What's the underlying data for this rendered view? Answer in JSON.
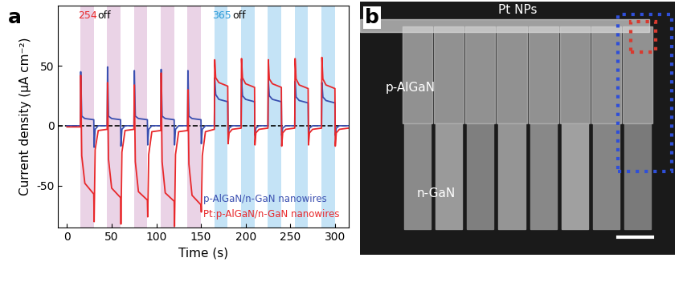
{
  "chart_data": {
    "type": "line",
    "panel_label": "a",
    "x_label": "Time (s)",
    "y_label": "Current density (μA cm⁻²)",
    "xlim": [
      -10,
      315
    ],
    "xticks": [
      0,
      50,
      100,
      150,
      200,
      250,
      300
    ],
    "ylim": [
      -85,
      100
    ],
    "yticks": [
      -50,
      0,
      50
    ],
    "legend": "lower right",
    "x": [
      0,
      15,
      15.4,
      16.5,
      20,
      30,
      30.4,
      31.5,
      35,
      45,
      45.4,
      46.5,
      50,
      60,
      60.4,
      61.5,
      65,
      75,
      75.4,
      76.5,
      80,
      90,
      90.4,
      91.5,
      95,
      105,
      105.4,
      106.5,
      110,
      120,
      120.4,
      121.5,
      125,
      135,
      135.4,
      136.5,
      140,
      150,
      150.4,
      151.5,
      155,
      165,
      165.4,
      166.5,
      170,
      180,
      180.4,
      181.5,
      185,
      195,
      195.4,
      196.5,
      200,
      210,
      210.4,
      211.5,
      215,
      225,
      225.4,
      226.5,
      230,
      240,
      240.4,
      241.5,
      245,
      255,
      255.4,
      256.5,
      260,
      270,
      270.4,
      271.5,
      275,
      285,
      285.4,
      286.5,
      290,
      300,
      300.4,
      301.5,
      305,
      315
    ],
    "series": [
      {
        "name": "p-AlGaN/n-GaN nanowires",
        "color": "#3a4fb0",
        "values": [
          0,
          0,
          45,
          8,
          6,
          5,
          -18,
          -3,
          0,
          0,
          49,
          8,
          6,
          5,
          -17,
          -3,
          0,
          0,
          46,
          8,
          6,
          5,
          -16,
          -3,
          0,
          0,
          47,
          8,
          6,
          5,
          -16,
          -3,
          0,
          0,
          46,
          8,
          6,
          5,
          -15,
          -3,
          0,
          0,
          40,
          26,
          22,
          20,
          -8,
          -2,
          0,
          0,
          39,
          25,
          22,
          20,
          -8,
          -2,
          0,
          0,
          38,
          25,
          22,
          20,
          -8,
          -2,
          0,
          0,
          37,
          24,
          21,
          19,
          -8,
          -2,
          0,
          0,
          36,
          24,
          21,
          19,
          -8,
          -2,
          0,
          0
        ]
      },
      {
        "name": "Pt:p-AlGaN/n-GaN nanowires",
        "color": "#e8282b",
        "values": [
          -1,
          -1,
          42,
          -25,
          -48,
          -57,
          -80,
          -20,
          -4,
          -3,
          36,
          -28,
          -52,
          -60,
          -82,
          -22,
          -4,
          -3,
          34,
          -30,
          -55,
          -62,
          -76,
          -24,
          -5,
          -4,
          44,
          -30,
          -56,
          -63,
          -84,
          -24,
          -5,
          -4,
          30,
          -32,
          -58,
          -66,
          -72,
          -25,
          -5,
          -3,
          55,
          40,
          36,
          33,
          -15,
          -6,
          -3,
          -2,
          56,
          40,
          35,
          32,
          -16,
          -6,
          -3,
          -2,
          55,
          39,
          35,
          32,
          -17,
          -6,
          -3,
          -2,
          56,
          39,
          34,
          31,
          -16,
          -6,
          -3,
          -2,
          57,
          39,
          34,
          31,
          -17,
          -6,
          -3,
          -2
        ]
      }
    ],
    "bands": [
      {
        "color": "#ead3e6",
        "starts": [
          15,
          45,
          75,
          105,
          135
        ],
        "ends": [
          30,
          60,
          90,
          120,
          150
        ]
      },
      {
        "color": "#c4e3f6",
        "starts": [
          165,
          195,
          225,
          255,
          285
        ],
        "ends": [
          180,
          210,
          240,
          270,
          300
        ]
      }
    ],
    "reference_line": {
      "y": 0,
      "color": "#000000",
      "line_style": "dashed"
    },
    "annotations": [
      {
        "text": "254",
        "x": 12,
        "y": 92,
        "color": "#e8282b"
      },
      {
        "text": "off",
        "x": 34,
        "y": 92,
        "color": "#000000"
      },
      {
        "text": "365",
        "x": 163,
        "y": 92,
        "color": "#2a9ad8"
      },
      {
        "text": "off",
        "x": 185,
        "y": 92,
        "color": "#000000"
      }
    ]
  },
  "image_panel": {
    "panel_label": "b",
    "labels": [
      "Pt NPs",
      "p-AlGaN",
      "n-GaN"
    ]
  }
}
